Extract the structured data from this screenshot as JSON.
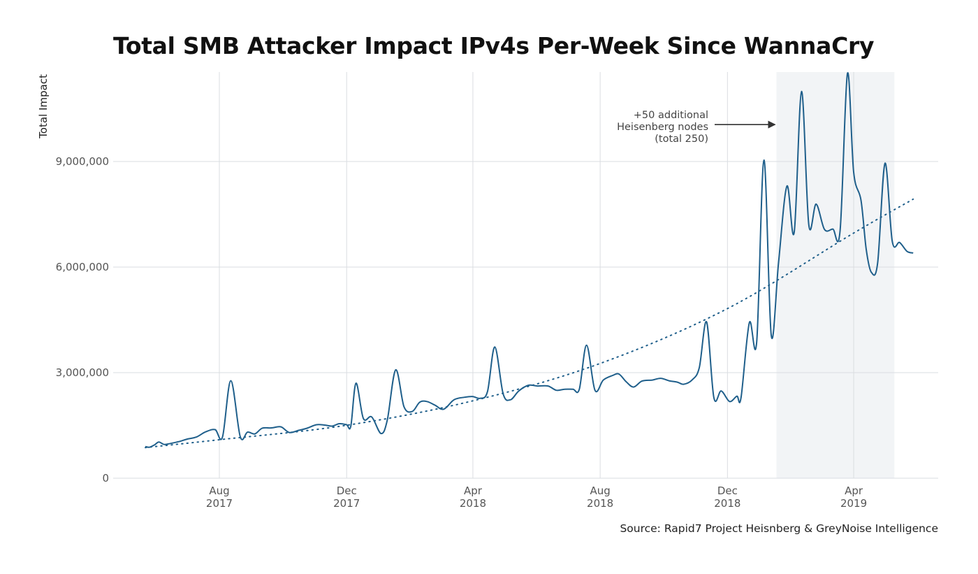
{
  "chart_data": {
    "type": "line",
    "title": "Total SMB Attacker Impact IPv4s Per-Week Since WannaCry",
    "xlabel": "",
    "ylabel": "Total Impact",
    "ylim": [
      0,
      11500000
    ],
    "xlim": [
      "2017-05-15",
      "2019-06-10"
    ],
    "y_ticks": [
      {
        "value": 0,
        "label": "0"
      },
      {
        "value": 3000000,
        "label": "3,000,000"
      },
      {
        "value": 6000000,
        "label": "6,000,000"
      },
      {
        "value": 9000000,
        "label": "9,000,000"
      }
    ],
    "x_ticks": [
      {
        "date": "2017-08-01",
        "month": "Aug",
        "year": "2017"
      },
      {
        "date": "2017-12-01",
        "month": "Dec",
        "year": "2017"
      },
      {
        "date": "2018-04-01",
        "month": "Apr",
        "year": "2018"
      },
      {
        "date": "2018-08-01",
        "month": "Aug",
        "year": "2018"
      },
      {
        "date": "2018-12-01",
        "month": "Dec",
        "year": "2018"
      },
      {
        "date": "2019-04-01",
        "month": "Apr",
        "year": "2019"
      }
    ],
    "grid": true,
    "line_color": "#1f5f8b",
    "highlight_color": "#f2f4f6",
    "highlight_region": {
      "start": "2019-01-17",
      "end": "2019-05-10"
    },
    "series": [
      {
        "style": "solid",
        "points": [
          [
            "2017-05-22",
            900000
          ],
          [
            "2017-05-26",
            880000
          ],
          [
            "2017-05-31",
            950000
          ],
          [
            "2017-06-04",
            1030000
          ],
          [
            "2017-06-09",
            960000
          ],
          [
            "2017-06-14",
            980000
          ],
          [
            "2017-06-23",
            1040000
          ],
          [
            "2017-07-01",
            1110000
          ],
          [
            "2017-07-10",
            1170000
          ],
          [
            "2017-07-19",
            1320000
          ],
          [
            "2017-07-28",
            1380000
          ],
          [
            "2017-08-04",
            1170000
          ],
          [
            "2017-08-12",
            2770000
          ],
          [
            "2017-08-21",
            1180000
          ],
          [
            "2017-08-28",
            1310000
          ],
          [
            "2017-09-04",
            1260000
          ],
          [
            "2017-09-11",
            1420000
          ],
          [
            "2017-09-20",
            1430000
          ],
          [
            "2017-09-29",
            1460000
          ],
          [
            "2017-10-07",
            1300000
          ],
          [
            "2017-10-16",
            1360000
          ],
          [
            "2017-10-24",
            1420000
          ],
          [
            "2017-11-02",
            1520000
          ],
          [
            "2017-11-10",
            1510000
          ],
          [
            "2017-11-17",
            1480000
          ],
          [
            "2017-11-24",
            1550000
          ],
          [
            "2017-12-01",
            1520000
          ],
          [
            "2017-12-05",
            1480000
          ],
          [
            "2017-12-10",
            2700000
          ],
          [
            "2017-12-17",
            1700000
          ],
          [
            "2017-12-25",
            1740000
          ],
          [
            "2018-01-03",
            1270000
          ],
          [
            "2018-01-09",
            1660000
          ],
          [
            "2018-01-17",
            3080000
          ],
          [
            "2018-01-25",
            2030000
          ],
          [
            "2018-02-02",
            1900000
          ],
          [
            "2018-02-09",
            2160000
          ],
          [
            "2018-02-16",
            2180000
          ],
          [
            "2018-02-24",
            2070000
          ],
          [
            "2018-03-04",
            1960000
          ],
          [
            "2018-03-14",
            2230000
          ],
          [
            "2018-03-24",
            2300000
          ],
          [
            "2018-04-01",
            2320000
          ],
          [
            "2018-04-08",
            2270000
          ],
          [
            "2018-04-15",
            2460000
          ],
          [
            "2018-04-22",
            3730000
          ],
          [
            "2018-04-30",
            2400000
          ],
          [
            "2018-05-07",
            2230000
          ],
          [
            "2018-05-15",
            2480000
          ],
          [
            "2018-05-24",
            2640000
          ],
          [
            "2018-06-02",
            2620000
          ],
          [
            "2018-06-12",
            2620000
          ],
          [
            "2018-06-20",
            2500000
          ],
          [
            "2018-06-28",
            2530000
          ],
          [
            "2018-07-06",
            2530000
          ],
          [
            "2018-07-12",
            2530000
          ],
          [
            "2018-07-19",
            3780000
          ],
          [
            "2018-07-27",
            2500000
          ],
          [
            "2018-08-04",
            2790000
          ],
          [
            "2018-08-13",
            2920000
          ],
          [
            "2018-08-19",
            2960000
          ],
          [
            "2018-08-26",
            2740000
          ],
          [
            "2018-09-02",
            2590000
          ],
          [
            "2018-09-10",
            2760000
          ],
          [
            "2018-09-20",
            2790000
          ],
          [
            "2018-09-28",
            2840000
          ],
          [
            "2018-10-06",
            2770000
          ],
          [
            "2018-10-14",
            2730000
          ],
          [
            "2018-10-20",
            2670000
          ],
          [
            "2018-10-28",
            2790000
          ],
          [
            "2018-11-04",
            3140000
          ],
          [
            "2018-11-11",
            4440000
          ],
          [
            "2018-11-18",
            2290000
          ],
          [
            "2018-11-25",
            2480000
          ],
          [
            "2018-12-03",
            2180000
          ],
          [
            "2018-12-10",
            2330000
          ],
          [
            "2018-12-14",
            2290000
          ],
          [
            "2018-12-22",
            4420000
          ],
          [
            "2018-12-29",
            3870000
          ],
          [
            "2019-01-05",
            9040000
          ],
          [
            "2019-01-12",
            4050000
          ],
          [
            "2019-01-19",
            6130000
          ],
          [
            "2019-01-27",
            8300000
          ],
          [
            "2019-02-03",
            6990000
          ],
          [
            "2019-02-10",
            10990000
          ],
          [
            "2019-02-17",
            7200000
          ],
          [
            "2019-02-24",
            7790000
          ],
          [
            "2019-03-04",
            7070000
          ],
          [
            "2019-03-12",
            7080000
          ],
          [
            "2019-03-19",
            7040000
          ],
          [
            "2019-03-26",
            11500000
          ],
          [
            "2019-04-01",
            8700000
          ],
          [
            "2019-04-08",
            7900000
          ],
          [
            "2019-04-13",
            6500000
          ],
          [
            "2019-04-18",
            5850000
          ],
          [
            "2019-04-24",
            6130000
          ],
          [
            "2019-05-01",
            8950000
          ],
          [
            "2019-05-08",
            6730000
          ],
          [
            "2019-05-15",
            6700000
          ],
          [
            "2019-05-22",
            6450000
          ],
          [
            "2019-05-28",
            6400000
          ]
        ]
      },
      {
        "style": "dotted",
        "fit": "exponential",
        "points": [
          [
            "2017-05-22",
            870000
          ],
          [
            "2017-07-31",
            1090000
          ],
          [
            "2017-11-30",
            1500000
          ],
          [
            "2018-04-01",
            2200000
          ],
          [
            "2018-07-31",
            3250000
          ],
          [
            "2018-12-01",
            4820000
          ],
          [
            "2019-03-31",
            6950000
          ],
          [
            "2019-05-28",
            7930000
          ]
        ]
      }
    ],
    "annotations": [
      {
        "lines": [
          "+50 additional",
          "Heisenberg nodes",
          "(total 250)"
        ],
        "arrow_to": [
          "2019-01-17",
          10050000
        ]
      }
    ],
    "source": "Source: Rapid7 Project Heisnberg & GreyNoise Intelligence"
  }
}
